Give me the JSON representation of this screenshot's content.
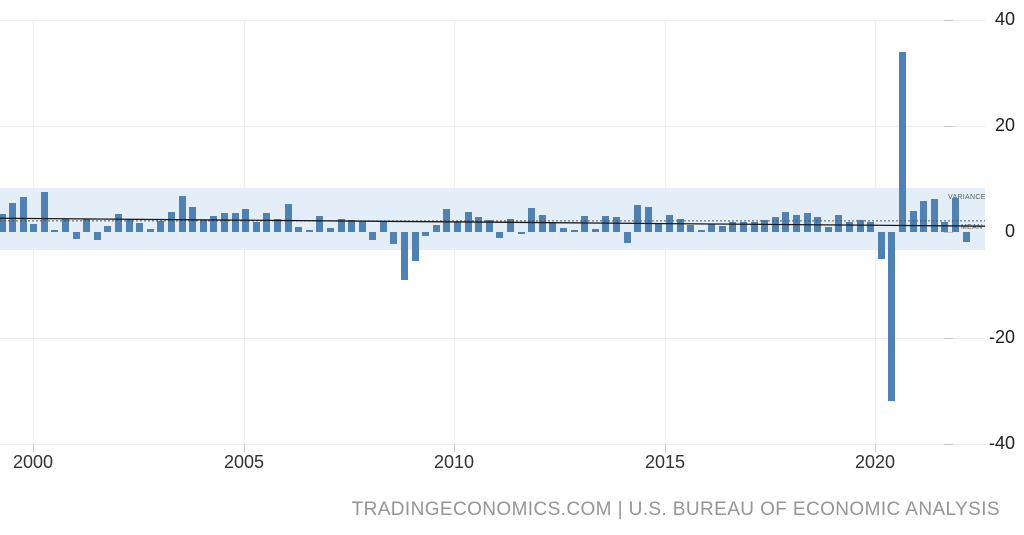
{
  "chart_data": {
    "type": "bar",
    "x_axis": {
      "tick_labels": [
        "2000",
        "2005",
        "2010",
        "2015",
        "2020"
      ]
    },
    "y_axis": {
      "tick_labels": [
        "40",
        "20",
        "0",
        "-20",
        "-40"
      ],
      "tick_values": [
        40,
        20,
        0,
        -20,
        -40
      ],
      "ylim": [
        -40,
        40
      ]
    },
    "start_quarter": "1999-Q2",
    "end_quarter": "2022-Q1",
    "quarters": [
      "1999-Q2",
      "1999-Q3",
      "1999-Q4",
      "2000-Q1",
      "2000-Q2",
      "2000-Q3",
      "2000-Q4",
      "2001-Q1",
      "2001-Q2",
      "2001-Q3",
      "2001-Q4",
      "2002-Q1",
      "2002-Q2",
      "2002-Q3",
      "2002-Q4",
      "2003-Q1",
      "2003-Q2",
      "2003-Q3",
      "2003-Q4",
      "2004-Q1",
      "2004-Q2",
      "2004-Q3",
      "2004-Q4",
      "2005-Q1",
      "2005-Q2",
      "2005-Q3",
      "2005-Q4",
      "2006-Q1",
      "2006-Q2",
      "2006-Q3",
      "2006-Q4",
      "2007-Q1",
      "2007-Q2",
      "2007-Q3",
      "2007-Q4",
      "2008-Q1",
      "2008-Q2",
      "2008-Q3",
      "2008-Q4",
      "2009-Q1",
      "2009-Q2",
      "2009-Q3",
      "2009-Q4",
      "2010-Q1",
      "2010-Q2",
      "2010-Q3",
      "2010-Q4",
      "2011-Q1",
      "2011-Q2",
      "2011-Q3",
      "2011-Q4",
      "2012-Q1",
      "2012-Q2",
      "2012-Q3",
      "2012-Q4",
      "2013-Q1",
      "2013-Q2",
      "2013-Q3",
      "2013-Q4",
      "2014-Q1",
      "2014-Q2",
      "2014-Q3",
      "2014-Q4",
      "2015-Q1",
      "2015-Q2",
      "2015-Q3",
      "2015-Q4",
      "2016-Q1",
      "2016-Q2",
      "2016-Q3",
      "2016-Q4",
      "2017-Q1",
      "2017-Q2",
      "2017-Q3",
      "2017-Q4",
      "2018-Q1",
      "2018-Q2",
      "2018-Q3",
      "2018-Q4",
      "2019-Q1",
      "2019-Q2",
      "2019-Q3",
      "2019-Q4",
      "2020-Q1",
      "2020-Q2",
      "2020-Q3",
      "2020-Q4",
      "2021-Q1",
      "2021-Q2",
      "2021-Q3",
      "2021-Q4",
      "2022-Q1"
    ],
    "values": [
      3.4,
      5.4,
      6.6,
      1.5,
      7.5,
      0.4,
      2.4,
      -1.3,
      2.5,
      -1.6,
      1.1,
      3.4,
      2.4,
      1.7,
      0.5,
      2.1,
      3.8,
      6.8,
      4.8,
      2.3,
      3.0,
      3.5,
      3.6,
      4.3,
      1.8,
      3.5,
      2.4,
      5.2,
      0.9,
      0.4,
      3.0,
      0.8,
      2.4,
      2.2,
      2.0,
      -1.5,
      2.1,
      -2.2,
      -9.0,
      -5.5,
      -0.8,
      1.4,
      4.3,
      1.8,
      3.7,
      2.9,
      2.2,
      -1.2,
      2.5,
      -0.3,
      4.6,
      3.3,
      1.8,
      0.7,
      0.4,
      3.0,
      0.5,
      3.0,
      2.9,
      -2.0,
      5.1,
      4.7,
      1.6,
      3.2,
      2.4,
      1.4,
      0.4,
      1.6,
      1.1,
      1.9,
      1.8,
      1.8,
      2.2,
      2.8,
      3.8,
      3.2,
      3.6,
      2.8,
      1.0,
      3.2,
      1.9,
      2.2,
      1.9,
      -5.1,
      -31.9,
      34.0,
      4.0,
      5.9,
      6.3,
      1.9,
      6.5,
      -1.8
    ],
    "bar_color": "#4f81b2",
    "grid": true,
    "legend": "none",
    "variance_band": {
      "label": "VARIANCE",
      "upper_value": 8.3,
      "lower_value": -3.4,
      "color": "#e4eef8"
    },
    "mean_line": {
      "label": "MEAN",
      "value": 2.1,
      "style": "dotted",
      "color": "#555555"
    },
    "trend_line": {
      "start_value": 2.6,
      "end_value": 1.1,
      "color": "#1a1a1a"
    }
  },
  "footer": {
    "source_text": "TRADINGECONOMICS.COM | U.S. BUREAU OF ECONOMIC ANALYSIS"
  }
}
